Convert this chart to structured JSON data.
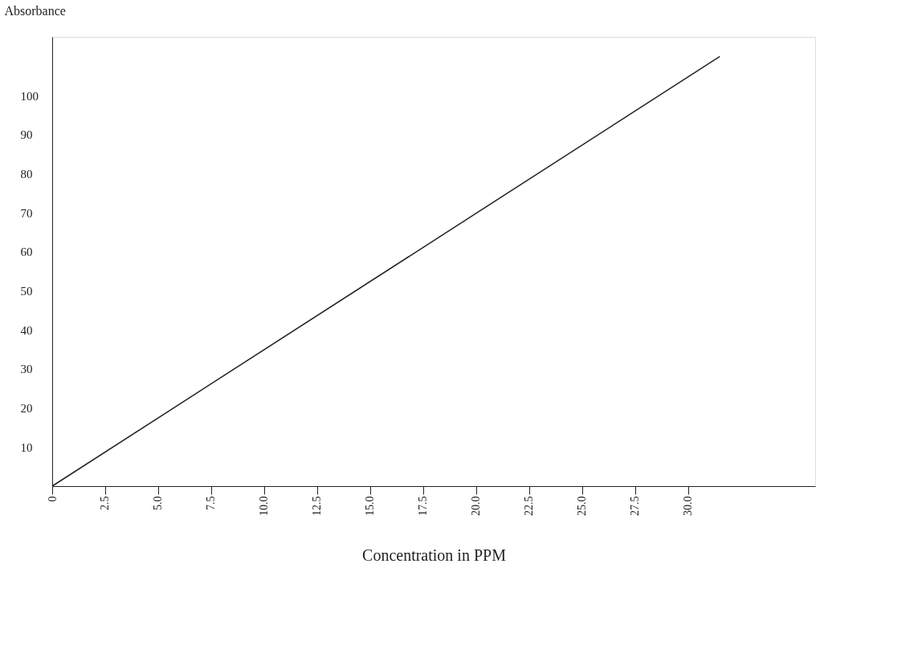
{
  "chart_data": {
    "type": "line",
    "xlabel": "Concentration in PPM",
    "ylabel": "Absorbance",
    "x": [
      0,
      31.5
    ],
    "series": [
      {
        "color": "#222222",
        "values": [
          0,
          110
        ]
      }
    ],
    "xlim": [
      0,
      36
    ],
    "ylim": [
      0,
      115
    ],
    "xticks": [
      0,
      2.5,
      {
        "value": 5,
        "label": "5.0"
      },
      7.5,
      {
        "value": 10,
        "label": "10.0"
      },
      12.5,
      {
        "value": 15,
        "label": "15.0"
      },
      17.5,
      {
        "value": 20,
        "label": "20.0"
      },
      22.5,
      {
        "value": 25,
        "label": "25.0"
      },
      27.5,
      {
        "value": 30,
        "label": "30.0"
      }
    ],
    "yticks": [
      10,
      20,
      30,
      40,
      50,
      60,
      70,
      80,
      90,
      100
    ],
    "grid": false,
    "legend": false,
    "marker": "none",
    "line_style": "solid"
  }
}
